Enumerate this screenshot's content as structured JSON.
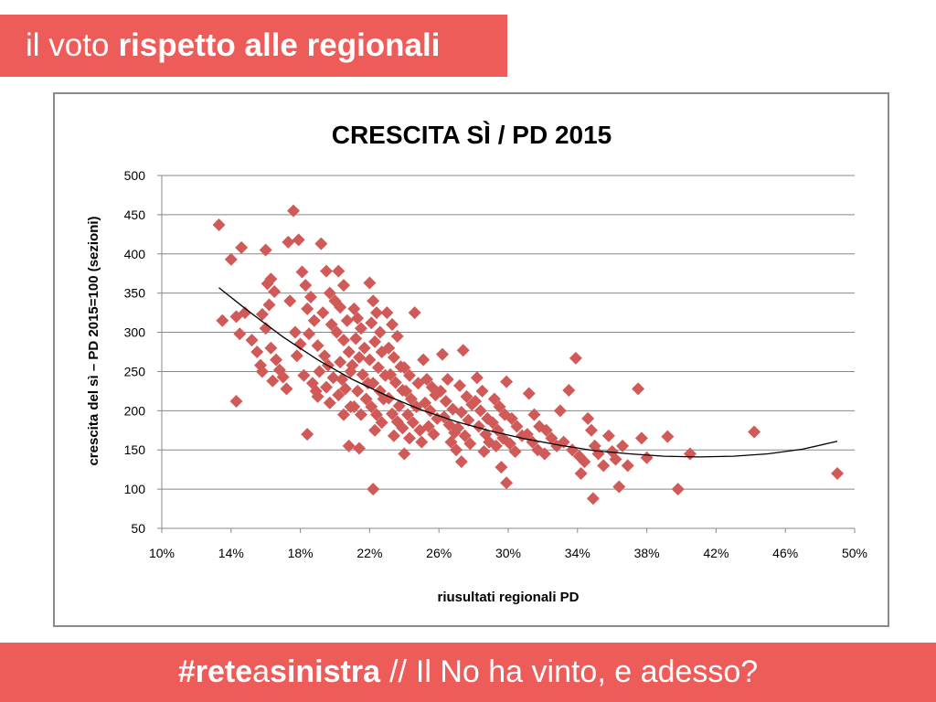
{
  "header": {
    "title_light": "il voto",
    "title_bold": "rispetto alle regionali"
  },
  "footer": {
    "hashtag_bold_1": "#rete",
    "hashtag_light": "a",
    "hashtag_bold_2": "sinistra",
    "separator": "//",
    "tagline": "Il No ha vinto, e adesso?"
  },
  "colors": {
    "accent": "#ee5c5a",
    "marker": "#d05a58",
    "trendline": "#000000",
    "grid": "#888888"
  },
  "chart_data": {
    "type": "scatter",
    "title": "CRESCITA SÌ / PD 2015",
    "xlabel": "riusultati regionali PD",
    "ylabel": "crescita del sì – PD 2015=100 (sezioni)",
    "xlim": [
      0.1,
      0.5
    ],
    "ylim": [
      50,
      500
    ],
    "x_ticks": [
      0.1,
      0.14,
      0.18,
      0.22,
      0.26,
      0.3,
      0.34,
      0.38,
      0.42,
      0.46,
      0.5
    ],
    "x_tick_labels": [
      "10%",
      "14%",
      "18%",
      "22%",
      "26%",
      "30%",
      "34%",
      "38%",
      "42%",
      "46%",
      "50%"
    ],
    "y_ticks": [
      50,
      100,
      150,
      200,
      250,
      300,
      350,
      400,
      450,
      500
    ],
    "y_tick_labels": [
      "50",
      "100",
      "150",
      "200",
      "250",
      "300",
      "350",
      "400",
      "450",
      "500"
    ],
    "grid": "horizontal",
    "marker": "diamond",
    "trendline": {
      "type": "polynomial",
      "points": [
        [
          0.133,
          357
        ],
        [
          0.15,
          327
        ],
        [
          0.17,
          294
        ],
        [
          0.19,
          265
        ],
        [
          0.21,
          240
        ],
        [
          0.23,
          219
        ],
        [
          0.25,
          201
        ],
        [
          0.27,
          186
        ],
        [
          0.29,
          174
        ],
        [
          0.31,
          164
        ],
        [
          0.33,
          156
        ],
        [
          0.35,
          149
        ],
        [
          0.37,
          145
        ],
        [
          0.39,
          142
        ],
        [
          0.41,
          141
        ],
        [
          0.43,
          142
        ],
        [
          0.45,
          145
        ],
        [
          0.47,
          151
        ],
        [
          0.49,
          161
        ]
      ]
    },
    "points": [
      [
        0.133,
        437
      ],
      [
        0.14,
        393
      ],
      [
        0.146,
        408
      ],
      [
        0.135,
        315
      ],
      [
        0.143,
        320
      ],
      [
        0.148,
        325
      ],
      [
        0.145,
        298
      ],
      [
        0.143,
        212
      ],
      [
        0.152,
        290
      ],
      [
        0.155,
        275
      ],
      [
        0.157,
        258
      ],
      [
        0.158,
        250
      ],
      [
        0.16,
        405
      ],
      [
        0.161,
        362
      ],
      [
        0.163,
        368
      ],
      [
        0.165,
        352
      ],
      [
        0.162,
        335
      ],
      [
        0.158,
        323
      ],
      [
        0.16,
        305
      ],
      [
        0.163,
        280
      ],
      [
        0.166,
        265
      ],
      [
        0.168,
        252
      ],
      [
        0.164,
        238
      ],
      [
        0.17,
        243
      ],
      [
        0.172,
        228
      ],
      [
        0.173,
        415
      ],
      [
        0.176,
        455
      ],
      [
        0.179,
        418
      ],
      [
        0.174,
        340
      ],
      [
        0.177,
        300
      ],
      [
        0.18,
        285
      ],
      [
        0.178,
        270
      ],
      [
        0.181,
        377
      ],
      [
        0.183,
        360
      ],
      [
        0.186,
        345
      ],
      [
        0.184,
        330
      ],
      [
        0.188,
        315
      ],
      [
        0.185,
        298
      ],
      [
        0.182,
        245
      ],
      [
        0.187,
        235
      ],
      [
        0.189,
        225
      ],
      [
        0.184,
        170
      ],
      [
        0.192,
        413
      ],
      [
        0.195,
        378
      ],
      [
        0.197,
        350
      ],
      [
        0.2,
        340
      ],
      [
        0.193,
        325
      ],
      [
        0.198,
        310
      ],
      [
        0.19,
        283
      ],
      [
        0.194,
        270
      ],
      [
        0.196,
        258
      ],
      [
        0.191,
        250
      ],
      [
        0.199,
        242
      ],
      [
        0.195,
        230
      ],
      [
        0.19,
        218
      ],
      [
        0.197,
        210
      ],
      [
        0.202,
        378
      ],
      [
        0.205,
        360
      ],
      [
        0.203,
        332
      ],
      [
        0.207,
        315
      ],
      [
        0.201,
        300
      ],
      [
        0.205,
        290
      ],
      [
        0.208,
        275
      ],
      [
        0.203,
        262
      ],
      [
        0.209,
        250
      ],
      [
        0.204,
        240
      ],
      [
        0.206,
        228
      ],
      [
        0.202,
        220
      ],
      [
        0.209,
        205
      ],
      [
        0.205,
        195
      ],
      [
        0.208,
        155
      ],
      [
        0.211,
        330
      ],
      [
        0.213,
        318
      ],
      [
        0.215,
        305
      ],
      [
        0.212,
        292
      ],
      [
        0.217,
        280
      ],
      [
        0.214,
        268
      ],
      [
        0.21,
        258
      ],
      [
        0.216,
        246
      ],
      [
        0.219,
        235
      ],
      [
        0.213,
        225
      ],
      [
        0.218,
        215
      ],
      [
        0.211,
        205
      ],
      [
        0.215,
        195
      ],
      [
        0.214,
        152
      ],
      [
        0.22,
        363
      ],
      [
        0.222,
        340
      ],
      [
        0.224,
        325
      ],
      [
        0.221,
        312
      ],
      [
        0.226,
        300
      ],
      [
        0.223,
        288
      ],
      [
        0.227,
        275
      ],
      [
        0.22,
        265
      ],
      [
        0.225,
        255
      ],
      [
        0.229,
        245
      ],
      [
        0.222,
        235
      ],
      [
        0.226,
        225
      ],
      [
        0.228,
        215
      ],
      [
        0.221,
        205
      ],
      [
        0.224,
        195
      ],
      [
        0.227,
        185
      ],
      [
        0.223,
        175
      ],
      [
        0.222,
        100
      ],
      [
        0.23,
        325
      ],
      [
        0.233,
        310
      ],
      [
        0.236,
        295
      ],
      [
        0.231,
        280
      ],
      [
        0.234,
        268
      ],
      [
        0.238,
        256
      ],
      [
        0.232,
        246
      ],
      [
        0.235,
        236
      ],
      [
        0.239,
        226
      ],
      [
        0.231,
        216
      ],
      [
        0.237,
        206
      ],
      [
        0.233,
        196
      ],
      [
        0.236,
        186
      ],
      [
        0.239,
        178
      ],
      [
        0.234,
        168
      ],
      [
        0.24,
        255
      ],
      [
        0.243,
        245
      ],
      [
        0.246,
        325
      ],
      [
        0.248,
        235
      ],
      [
        0.241,
        225
      ],
      [
        0.244,
        215
      ],
      [
        0.247,
        205
      ],
      [
        0.242,
        195
      ],
      [
        0.245,
        185
      ],
      [
        0.249,
        175
      ],
      [
        0.243,
        165
      ],
      [
        0.24,
        145
      ],
      [
        0.251,
        265
      ],
      [
        0.253,
        240
      ],
      [
        0.256,
        230
      ],
      [
        0.258,
        220
      ],
      [
        0.252,
        210
      ],
      [
        0.255,
        200
      ],
      [
        0.259,
        190
      ],
      [
        0.254,
        180
      ],
      [
        0.257,
        170
      ],
      [
        0.25,
        160
      ],
      [
        0.262,
        272
      ],
      [
        0.265,
        240
      ],
      [
        0.261,
        225
      ],
      [
        0.264,
        212
      ],
      [
        0.268,
        202
      ],
      [
        0.263,
        192
      ],
      [
        0.266,
        182
      ],
      [
        0.269,
        172
      ],
      [
        0.267,
        160
      ],
      [
        0.27,
        150
      ],
      [
        0.274,
        277
      ],
      [
        0.272,
        232
      ],
      [
        0.276,
        218
      ],
      [
        0.279,
        208
      ],
      [
        0.273,
        198
      ],
      [
        0.277,
        188
      ],
      [
        0.271,
        178
      ],
      [
        0.275,
        168
      ],
      [
        0.278,
        158
      ],
      [
        0.273,
        135
      ],
      [
        0.282,
        242
      ],
      [
        0.285,
        225
      ],
      [
        0.281,
        212
      ],
      [
        0.284,
        200
      ],
      [
        0.288,
        190
      ],
      [
        0.283,
        180
      ],
      [
        0.287,
        170
      ],
      [
        0.289,
        160
      ],
      [
        0.286,
        148
      ],
      [
        0.292,
        215
      ],
      [
        0.295,
        205
      ],
      [
        0.298,
        195
      ],
      [
        0.291,
        185
      ],
      [
        0.294,
        175
      ],
      [
        0.297,
        165
      ],
      [
        0.293,
        155
      ],
      [
        0.296,
        128
      ],
      [
        0.299,
        237
      ],
      [
        0.302,
        190
      ],
      [
        0.305,
        180
      ],
      [
        0.308,
        168
      ],
      [
        0.301,
        158
      ],
      [
        0.304,
        148
      ],
      [
        0.299,
        108
      ],
      [
        0.312,
        222
      ],
      [
        0.315,
        195
      ],
      [
        0.318,
        180
      ],
      [
        0.311,
        170
      ],
      [
        0.314,
        160
      ],
      [
        0.317,
        150
      ],
      [
        0.322,
        175
      ],
      [
        0.325,
        165
      ],
      [
        0.328,
        155
      ],
      [
        0.321,
        145
      ],
      [
        0.33,
        200
      ],
      [
        0.332,
        160
      ],
      [
        0.335,
        226
      ],
      [
        0.337,
        150
      ],
      [
        0.339,
        267
      ],
      [
        0.341,
        142
      ],
      [
        0.344,
        135
      ],
      [
        0.342,
        120
      ],
      [
        0.346,
        190
      ],
      [
        0.348,
        175
      ],
      [
        0.35,
        155
      ],
      [
        0.349,
        88
      ],
      [
        0.352,
        145
      ],
      [
        0.355,
        130
      ],
      [
        0.358,
        168
      ],
      [
        0.36,
        148
      ],
      [
        0.362,
        138
      ],
      [
        0.364,
        103
      ],
      [
        0.366,
        155
      ],
      [
        0.369,
        130
      ],
      [
        0.375,
        228
      ],
      [
        0.377,
        165
      ],
      [
        0.38,
        140
      ],
      [
        0.392,
        167
      ],
      [
        0.398,
        100
      ],
      [
        0.405,
        145
      ],
      [
        0.442,
        173
      ],
      [
        0.49,
        120
      ]
    ]
  }
}
